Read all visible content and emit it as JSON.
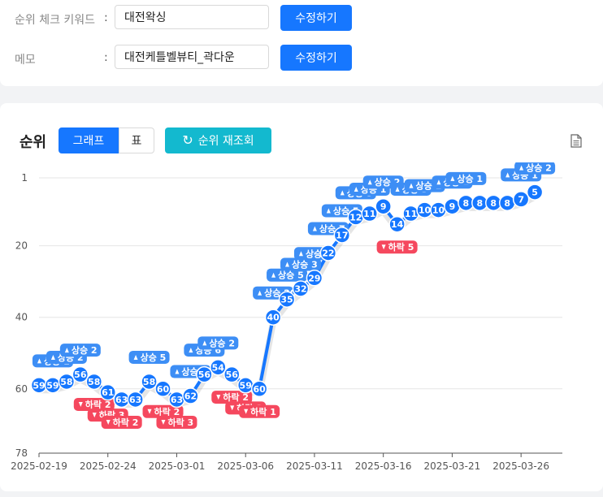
{
  "form": {
    "keyword": {
      "label": "순위 체크 키워드",
      "colon": ":",
      "value": "대전왁싱",
      "button": "수정하기"
    },
    "memo": {
      "label": "메모",
      "colon": ":",
      "value": "대전케틀벨뷰티_곽다운",
      "button": "수정하기"
    }
  },
  "rank_panel": {
    "title": "순위",
    "tabs": [
      "그래프",
      "표"
    ],
    "active_tab": "그래프",
    "refresh_label": "순위 재조회",
    "icons": {
      "refresh": "refresh-icon",
      "document": "document-icon"
    },
    "colors": {
      "line": "#1677ff",
      "point": "#1677ff",
      "rise": "#3d8ef5",
      "fall": "#f5485e",
      "refresh": "#13b9cf"
    }
  },
  "chart_data": {
    "type": "line",
    "title": "",
    "xlabel": "",
    "ylabel": "",
    "y_reversed": true,
    "ylim": [
      78,
      1
    ],
    "yticks": [
      1,
      20,
      40,
      60,
      78
    ],
    "xticks": [
      "2025-02-19",
      "2025-02-24",
      "2025-03-01",
      "2025-03-06",
      "2025-03-11",
      "2025-03-16",
      "2025-03-21",
      "2025-03-26"
    ],
    "grid": "horizontal",
    "series": [
      {
        "x": [
          "2025-02-19",
          "2025-02-20",
          "2025-02-21",
          "2025-02-22",
          "2025-02-23",
          "2025-02-24",
          "2025-02-25",
          "2025-02-26",
          "2025-02-27",
          "2025-02-28",
          "2025-03-01",
          "2025-03-02",
          "2025-03-03",
          "2025-03-04",
          "2025-03-05",
          "2025-03-06",
          "2025-03-07",
          "2025-03-08",
          "2025-03-09",
          "2025-03-10",
          "2025-03-11",
          "2025-03-12",
          "2025-03-13",
          "2025-03-14",
          "2025-03-15",
          "2025-03-16",
          "2025-03-17",
          "2025-03-18",
          "2025-03-19",
          "2025-03-20",
          "2025-03-21",
          "2025-03-22",
          "2025-03-23",
          "2025-03-24",
          "2025-03-25",
          "2025-03-26",
          "2025-03-27"
        ],
        "values": [
          59,
          59,
          58,
          56,
          58,
          61,
          63,
          63,
          58,
          60,
          63,
          62,
          56,
          54,
          56,
          59,
          60,
          40,
          35,
          32,
          29,
          22,
          17,
          12,
          11,
          9,
          14,
          11,
          10,
          10,
          9,
          8,
          8,
          8,
          8,
          7,
          5
        ]
      }
    ],
    "annotations": [
      {
        "x": "2025-02-20",
        "dir": "up",
        "text": "상승 1"
      },
      {
        "x": "2025-02-21",
        "dir": "up",
        "text": "상승 2"
      },
      {
        "x": "2025-02-22",
        "dir": "up",
        "text": "상승 2"
      },
      {
        "x": "2025-02-23",
        "dir": "down",
        "text": "하락 2"
      },
      {
        "x": "2025-02-24",
        "dir": "down",
        "text": "하락 3"
      },
      {
        "x": "2025-02-25",
        "dir": "down",
        "text": "하락 2"
      },
      {
        "x": "2025-02-27",
        "dir": "up",
        "text": "상승 5"
      },
      {
        "x": "2025-02-28",
        "dir": "down",
        "text": "하락 2"
      },
      {
        "x": "2025-03-01",
        "dir": "down",
        "text": "하락 3"
      },
      {
        "x": "2025-03-02",
        "dir": "up",
        "text": "상승 1"
      },
      {
        "x": "2025-03-03",
        "dir": "up",
        "text": "상승 6"
      },
      {
        "x": "2025-03-04",
        "dir": "up",
        "text": "상승 2"
      },
      {
        "x": "2025-03-05",
        "dir": "down",
        "text": "하락 2"
      },
      {
        "x": "2025-03-06",
        "dir": "down",
        "text": "하락 3"
      },
      {
        "x": "2025-03-07",
        "dir": "down",
        "text": "하락 1"
      },
      {
        "x": "2025-03-08",
        "dir": "up",
        "text": "상승 20"
      },
      {
        "x": "2025-03-09",
        "dir": "up",
        "text": "상승 5"
      },
      {
        "x": "2025-03-10",
        "dir": "up",
        "text": "상승 3"
      },
      {
        "x": "2025-03-11",
        "dir": "up",
        "text": "상승 3"
      },
      {
        "x": "2025-03-12",
        "dir": "up",
        "text": "상승 7"
      },
      {
        "x": "2025-03-13",
        "dir": "up",
        "text": "상승 5"
      },
      {
        "x": "2025-03-14",
        "dir": "up",
        "text": "상승 5"
      },
      {
        "x": "2025-03-15",
        "dir": "up",
        "text": "상승 1"
      },
      {
        "x": "2025-03-16",
        "dir": "up",
        "text": "상승 2"
      },
      {
        "x": "2025-03-17",
        "dir": "down",
        "text": "하락 5"
      },
      {
        "x": "2025-03-18",
        "dir": "up",
        "text": "상승 3"
      },
      {
        "x": "2025-03-19",
        "dir": "up",
        "text": "상승 1"
      },
      {
        "x": "2025-03-21",
        "dir": "up",
        "text": "상승 1"
      },
      {
        "x": "2025-03-22",
        "dir": "up",
        "text": "상승 1"
      },
      {
        "x": "2025-03-26",
        "dir": "up",
        "text": "상승 1"
      },
      {
        "x": "2025-03-27",
        "dir": "up",
        "text": "상승 2"
      }
    ]
  }
}
